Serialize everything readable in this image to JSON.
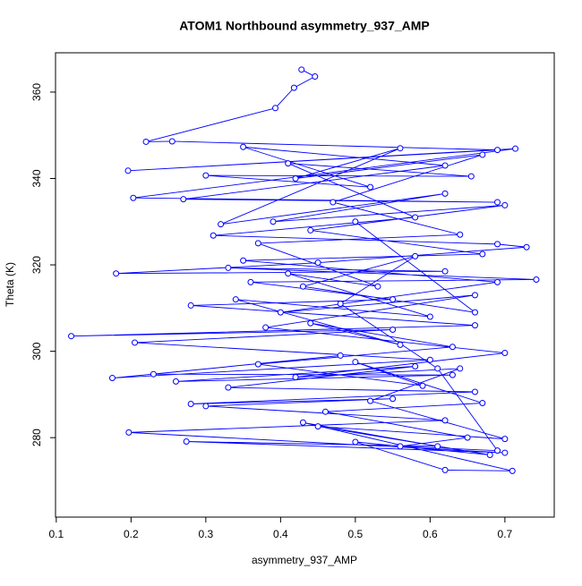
{
  "chart_data": {
    "type": "line",
    "markers": true,
    "title": "ATOM1 Northbound asymmetry_937_AMP",
    "x_label": "asymmetry_937_AMP",
    "y_label": "Theta (K)",
    "color": "#0000ff",
    "x": [
      0.428,
      0.446,
      0.418,
      0.393,
      0.22,
      0.255,
      0.69,
      0.196,
      0.714,
      0.203,
      0.69,
      0.27,
      0.62,
      0.35,
      0.52,
      0.3,
      0.655,
      0.41,
      0.58,
      0.31,
      0.69,
      0.729,
      0.45,
      0.18,
      0.62,
      0.33,
      0.742,
      0.36,
      0.55,
      0.28,
      0.66,
      0.12,
      0.55,
      0.205,
      0.6,
      0.175,
      0.48,
      0.23,
      0.63,
      0.26,
      0.58,
      0.33,
      0.66,
      0.28,
      0.55,
      0.3,
      0.62,
      0.197,
      0.7,
      0.274,
      0.61,
      0.43,
      0.71,
      0.62,
      0.5,
      0.68,
      0.45,
      0.7,
      0.52,
      0.64,
      0.42,
      0.7,
      0.38,
      0.66,
      0.4,
      0.69,
      0.35,
      0.67,
      0.44,
      0.7,
      0.39,
      0.62,
      0.32,
      0.56,
      0.42,
      0.67,
      0.47,
      0.64,
      0.37,
      0.53,
      0.41,
      0.6,
      0.34,
      0.56,
      0.44,
      0.63,
      0.37,
      0.59,
      0.5,
      0.67,
      0.46,
      0.65,
      0.56,
      0.69,
      0.61,
      0.48,
      0.58,
      0.43,
      0.66,
      0.5
    ],
    "values": [
      365.2,
      363.6,
      361.0,
      356.3,
      348.5,
      348.6,
      346.6,
      341.8,
      346.9,
      335.5,
      334.5,
      335.2,
      343.0,
      347.3,
      338.0,
      340.7,
      340.5,
      343.5,
      331.0,
      326.8,
      324.8,
      324.1,
      320.5,
      318.0,
      318.5,
      319.3,
      316.6,
      316.0,
      312.0,
      310.6,
      306.0,
      303.5,
      305.0,
      302.0,
      298.0,
      293.8,
      299.0,
      294.7,
      294.5,
      293.0,
      296.5,
      291.6,
      290.6,
      287.8,
      289.0,
      287.3,
      284.0,
      281.2,
      276.5,
      279.1,
      278.0,
      283.5,
      272.3,
      272.5,
      279.0,
      276.0,
      282.6,
      279.7,
      288.5,
      296.0,
      294.0,
      299.6,
      305.5,
      313.0,
      309.0,
      316.0,
      321.0,
      322.5,
      328.0,
      333.8,
      330.0,
      336.5,
      329.4,
      347.0,
      340.0,
      345.5,
      334.5,
      327.0,
      325.0,
      315.0,
      318.0,
      308.0,
      312.0,
      301.5,
      306.5,
      301.0,
      297.0,
      292.0,
      297.5,
      288.0,
      286.0,
      280.0,
      278.0,
      277.0,
      296.0,
      311.0,
      322.0,
      315.0,
      309.0,
      330.0
    ],
    "xlim": [
      0.099,
      0.766
    ],
    "xticks": [
      0.1,
      0.2,
      0.3,
      0.4,
      0.5,
      0.6,
      0.7
    ],
    "ylim": [
      261.6,
      369.1
    ],
    "yticks": [
      280,
      300,
      320,
      340,
      360
    ]
  }
}
